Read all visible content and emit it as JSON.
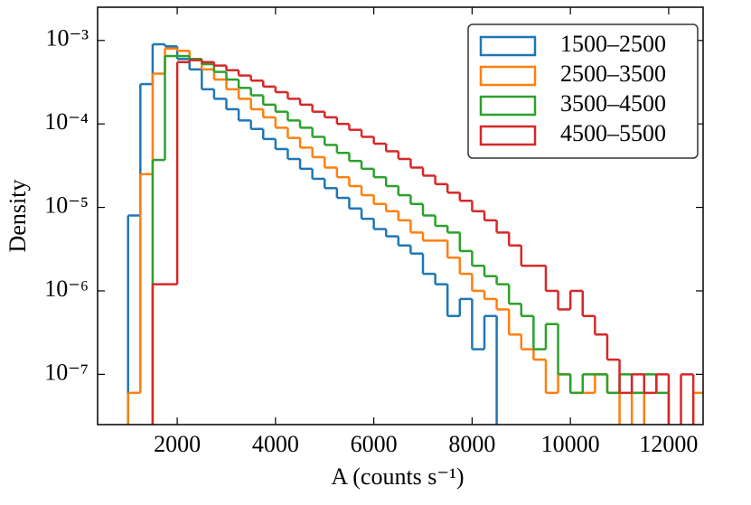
{
  "chart_data": {
    "type": "histogram",
    "xlabel": "A (counts s⁻¹)",
    "ylabel": "Density",
    "log_y": true,
    "legend": "upper right",
    "bins": [
      1000,
      1250,
      1500,
      1750,
      2000,
      2250,
      2500,
      2750,
      3000,
      3250,
      3500,
      3750,
      4000,
      4250,
      4500,
      4750,
      5000,
      5250,
      5500,
      5750,
      6000,
      6250,
      6500,
      6750,
      7000,
      7250,
      7500,
      7750,
      8000,
      8250,
      8500,
      8750,
      9000,
      9250,
      9500,
      9750,
      10000,
      10250,
      10500,
      10750,
      11000,
      11250,
      11500,
      11750,
      12000,
      12250,
      12500,
      12750
    ],
    "series": [
      {
        "name": "1500–2500",
        "color": "#1f77b4",
        "values": [
          8e-06,
          0.0003,
          0.0009,
          0.00085,
          0.0006,
          0.00045,
          0.00026,
          0.0002,
          0.00015,
          0.00011,
          8.7e-05,
          6.6e-05,
          5e-05,
          3.8e-05,
          2.9e-05,
          2.2e-05,
          1.7e-05,
          1.3e-05,
          9.7e-06,
          7.3e-06,
          5.5e-06,
          4.5e-06,
          3.5e-06,
          2.8e-06,
          1.6e-06,
          1.2e-06,
          5e-07,
          8e-07,
          2e-07,
          5e-07,
          null,
          null,
          null,
          null,
          null,
          null,
          null,
          null,
          null,
          null,
          null,
          null,
          null,
          null,
          null,
          null,
          null
        ]
      },
      {
        "name": "2500–3500",
        "color": "#ff7f0e",
        "values": [
          6e-08,
          2.5e-05,
          0.0004,
          0.0008,
          0.00075,
          0.0006,
          0.00045,
          0.00034,
          0.00026,
          0.0002,
          0.00015,
          0.00012,
          9e-05,
          6.8e-05,
          5.2e-05,
          4e-05,
          3e-05,
          2.3e-05,
          1.8e-05,
          1.4e-05,
          1.1e-05,
          9e-06,
          7e-06,
          5e-06,
          4e-06,
          4e-06,
          2.5e-06,
          1.6e-06,
          1e-06,
          8e-07,
          6e-07,
          3e-07,
          2e-07,
          1.5e-07,
          6e-08,
          1e-07,
          6e-08,
          6e-08,
          1e-07,
          6e-08,
          null,
          6e-08,
          null,
          null,
          null,
          null,
          6e-08
        ]
      },
      {
        "name": "3500–4500",
        "color": "#2ca02c",
        "values": [
          null,
          null,
          3.7e-05,
          0.00065,
          0.00065,
          0.0006,
          0.00052,
          0.00042,
          0.00034,
          0.00027,
          0.00022,
          0.00017,
          0.00014,
          0.00011,
          9e-05,
          7e-05,
          5.6e-05,
          4.5e-05,
          3.6e-05,
          2.9e-05,
          2.3e-05,
          1.8e-05,
          1.4e-05,
          1.1e-05,
          8e-06,
          6e-06,
          5e-06,
          3e-06,
          2e-06,
          1.5e-06,
          1.2e-06,
          7e-07,
          5e-07,
          2e-07,
          4e-07,
          1e-07,
          6e-08,
          1e-07,
          1e-07,
          6e-08,
          1e-07,
          6e-08,
          1e-07,
          6e-08,
          null,
          null,
          null
        ]
      },
      {
        "name": "4500–5500",
        "color": "#d62728",
        "values": [
          null,
          null,
          1.2e-06,
          1.2e-06,
          0.00055,
          0.00058,
          0.00055,
          0.0005,
          0.00044,
          0.00038,
          0.00033,
          0.00028,
          0.00024,
          0.0002,
          0.00017,
          0.00014,
          0.00012,
          0.0001,
          8.5e-05,
          7e-05,
          5.8e-05,
          4.7e-05,
          3.8e-05,
          3e-05,
          2.4e-05,
          1.9e-05,
          1.5e-05,
          1.2e-05,
          9e-06,
          7e-06,
          5e-06,
          3.5e-06,
          2e-06,
          2e-06,
          1e-06,
          6e-07,
          1e-06,
          5e-07,
          3e-07,
          1.5e-07,
          6e-08,
          1e-07,
          6e-08,
          1e-07,
          null,
          1e-07,
          null
        ]
      }
    ],
    "xlim": [
      380,
      12700
    ],
    "xticks": [
      2000,
      4000,
      6000,
      8000,
      10000,
      12000
    ],
    "ylim": [
      2.5e-08,
      0.0025
    ],
    "yticks": [
      {
        "value": 1e-07,
        "label": "10⁻⁷"
      },
      {
        "value": 1e-06,
        "label": "10⁻⁶"
      },
      {
        "value": 1e-05,
        "label": "10⁻⁵"
      },
      {
        "value": 0.0001,
        "label": "10⁻⁴"
      },
      {
        "value": 0.001,
        "label": "10⁻³"
      }
    ]
  }
}
